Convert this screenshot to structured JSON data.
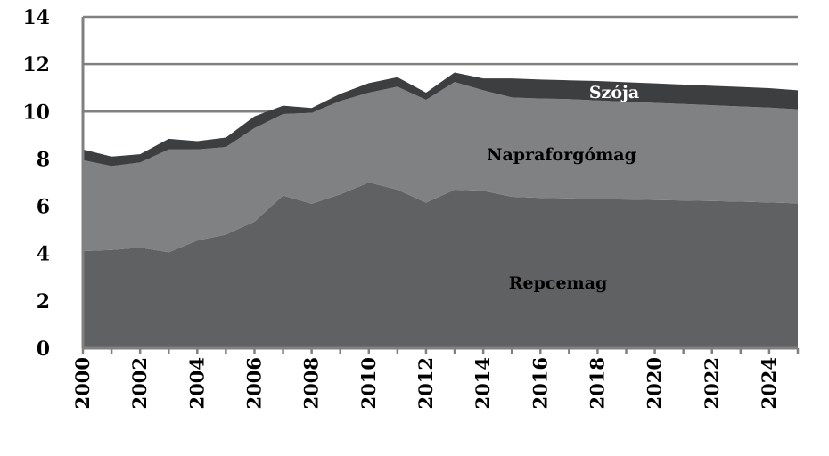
{
  "chart_data": {
    "type": "area",
    "stacked": true,
    "x": [
      2000,
      2001,
      2002,
      2003,
      2004,
      2005,
      2006,
      2007,
      2008,
      2009,
      2010,
      2011,
      2012,
      2013,
      2014,
      2015,
      2016,
      2017,
      2018,
      2019,
      2020,
      2021,
      2022,
      2023,
      2024,
      2025
    ],
    "x_tick_labels": [
      "2000",
      "2002",
      "2004",
      "2006",
      "2008",
      "2010",
      "2012",
      "2014",
      "2016",
      "2018",
      "2020",
      "2022",
      "2024"
    ],
    "y_tick_labels": [
      "0",
      "2",
      "4",
      "6",
      "8",
      "10",
      "12",
      "14"
    ],
    "ylim": [
      0,
      14
    ],
    "grid": "horizontal",
    "legend": "none (labels inside areas)",
    "series": [
      {
        "name": "Repcemag",
        "color": "#5f6163",
        "values": [
          4.1,
          4.15,
          4.25,
          4.05,
          4.55,
          4.8,
          5.35,
          6.45,
          6.1,
          6.5,
          7.0,
          6.7,
          6.15,
          6.7,
          6.65,
          6.4,
          6.35,
          6.33,
          6.3,
          6.28,
          6.26,
          6.24,
          6.22,
          6.19,
          6.16,
          6.12
        ]
      },
      {
        "name": "Napraforgómag",
        "color": "#7f8183",
        "values": [
          3.85,
          3.55,
          3.6,
          4.35,
          3.85,
          3.7,
          3.95,
          3.45,
          3.85,
          3.95,
          3.8,
          4.35,
          4.35,
          4.55,
          4.25,
          4.2,
          4.2,
          4.2,
          4.17,
          4.14,
          4.11,
          4.08,
          4.05,
          4.03,
          4.01,
          3.98
        ]
      },
      {
        "name": "Szója",
        "color": "#3c3e40",
        "values": [
          0.45,
          0.4,
          0.35,
          0.45,
          0.35,
          0.4,
          0.5,
          0.35,
          0.2,
          0.3,
          0.4,
          0.4,
          0.3,
          0.4,
          0.5,
          0.8,
          0.8,
          0.79,
          0.82,
          0.82,
          0.82,
          0.82,
          0.82,
          0.82,
          0.82,
          0.8
        ]
      }
    ],
    "area_labels": [
      {
        "name": "Repcemag"
      },
      {
        "name": "Napraforgómag"
      },
      {
        "name": "Szója"
      }
    ],
    "grid_color": "#808080",
    "axis_color": "#808080"
  }
}
